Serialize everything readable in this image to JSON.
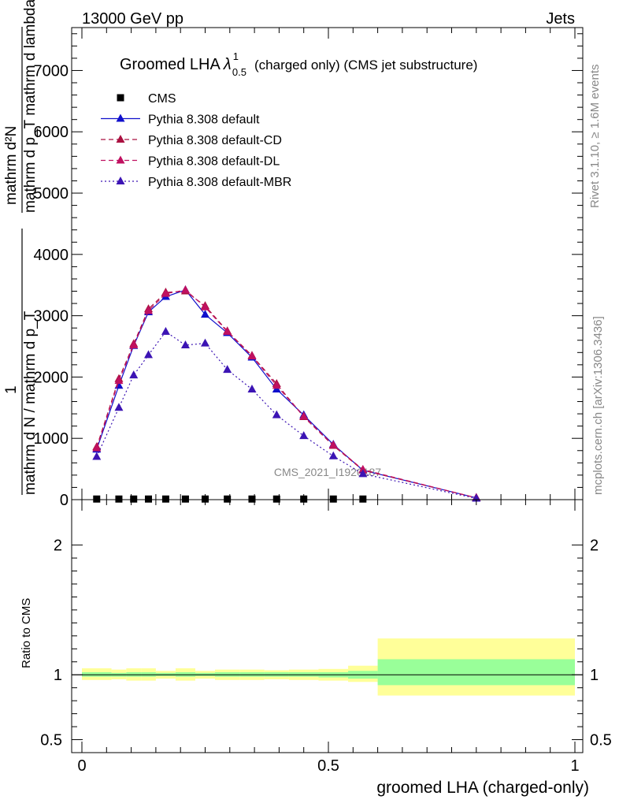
{
  "header": {
    "left": "13000 GeV pp",
    "right": "Jets"
  },
  "side_text": {
    "rivet": "Rivet 3.1.10, ≥ 1.6M events",
    "mcplots": "mcplots.cern.ch [arXiv:1306.3436]"
  },
  "watermark": "CMS_2021_I1920187",
  "chart_data": [
    {
      "type": "line",
      "title_main": "Groomed LHA",
      "title_symbol": "λ",
      "title_sup": "1",
      "title_sub": "0.5",
      "title_rest": "(charged only) (CMS jet substructure)",
      "ylabel_top": "mathrm d²N",
      "ylabel_bottom": "mathrm d p_T mathrm d lambda",
      "ylabel_small_top": "1",
      "ylabel_small_bottom": "mathrm d N / mathrm d p_T",
      "xlim": [
        0,
        1
      ],
      "ylim": [
        0,
        7700
      ],
      "y_tick_values": [
        0,
        1000,
        2000,
        3000,
        4000,
        5000,
        6000,
        7000
      ],
      "y_tick_labels": [
        "0",
        "1000",
        "2000",
        "3000",
        "4000",
        "5000",
        "6000",
        "7000"
      ],
      "legend_position": "top-left",
      "series": [
        {
          "name": "CMS",
          "marker": "square",
          "color": "#000000",
          "x": [
            0.03,
            0.075,
            0.105,
            0.135,
            0.17,
            0.21,
            0.25,
            0.295,
            0.345,
            0.395,
            0.45,
            0.51,
            0.57
          ],
          "y": [
            10,
            10,
            10,
            10,
            10,
            10,
            10,
            10,
            10,
            10,
            10,
            10,
            10
          ]
        },
        {
          "name": "Pythia 8.308 default",
          "marker": "triangle",
          "dash": "solid",
          "color": "#1010cc",
          "x": [
            0.03,
            0.075,
            0.105,
            0.135,
            0.17,
            0.21,
            0.25,
            0.295,
            0.345,
            0.395,
            0.45,
            0.51,
            0.57,
            0.8
          ],
          "y": [
            820,
            1860,
            2510,
            3060,
            3310,
            3420,
            3020,
            2720,
            2320,
            1800,
            1380,
            900,
            480,
            30
          ]
        },
        {
          "name": "Pythia 8.308 default-CD",
          "marker": "triangle",
          "dash": "dashed",
          "color": "#aa1040",
          "x": [
            0.03,
            0.075,
            0.105,
            0.135,
            0.17,
            0.21,
            0.25,
            0.295,
            0.345,
            0.395,
            0.45,
            0.51,
            0.57,
            0.8
          ],
          "y": [
            860,
            1970,
            2540,
            3110,
            3380,
            3400,
            3160,
            2750,
            2350,
            1890,
            1350,
            880,
            480,
            30
          ]
        },
        {
          "name": "Pythia 8.308 default-DL",
          "marker": "triangle",
          "dash": "dashed",
          "color": "#c01060",
          "x": [
            0.03,
            0.075,
            0.105,
            0.135,
            0.17,
            0.21,
            0.25,
            0.295,
            0.345,
            0.395,
            0.45,
            0.51,
            0.57,
            0.8
          ],
          "y": [
            840,
            1940,
            2520,
            3080,
            3360,
            3420,
            3140,
            2740,
            2340,
            1860,
            1360,
            890,
            490,
            30
          ]
        },
        {
          "name": "Pythia 8.308 default-MBR",
          "marker": "triangle",
          "dash": "dotted",
          "color": "#3c14b4",
          "x": [
            0.03,
            0.075,
            0.105,
            0.135,
            0.17,
            0.21,
            0.25,
            0.295,
            0.345,
            0.395,
            0.45,
            0.51,
            0.57,
            0.8
          ],
          "y": [
            700,
            1500,
            2030,
            2360,
            2740,
            2520,
            2550,
            2120,
            1800,
            1380,
            1040,
            710,
            420,
            20
          ]
        }
      ]
    },
    {
      "type": "area",
      "ylabel": "Ratio to CMS",
      "xlabel": "groomed LHA (charged-only)",
      "xlim": [
        0,
        1
      ],
      "ylim": [
        0.4,
        2.35
      ],
      "y_tick_values": [
        0.5,
        1,
        2
      ],
      "y_tick_labels": [
        "0.5",
        "1",
        "2"
      ],
      "x_tick_values": [
        0,
        0.5,
        1
      ],
      "x_tick_labels": [
        "0",
        "0.5",
        "1"
      ],
      "uncertainty_bins": [
        {
          "x0": 0.0,
          "x1": 0.06,
          "stat_lo": 0.985,
          "stat_hi": 1.02,
          "tot_lo": 0.96,
          "tot_hi": 1.05
        },
        {
          "x0": 0.06,
          "x1": 0.09,
          "stat_lo": 0.985,
          "stat_hi": 1.015,
          "tot_lo": 0.965,
          "tot_hi": 1.04
        },
        {
          "x0": 0.09,
          "x1": 0.12,
          "stat_lo": 0.985,
          "stat_hi": 1.02,
          "tot_lo": 0.955,
          "tot_hi": 1.05
        },
        {
          "x0": 0.12,
          "x1": 0.15,
          "stat_lo": 0.985,
          "stat_hi": 1.02,
          "tot_lo": 0.955,
          "tot_hi": 1.05
        },
        {
          "x0": 0.15,
          "x1": 0.19,
          "stat_lo": 0.99,
          "stat_hi": 1.015,
          "tot_lo": 0.97,
          "tot_hi": 1.03
        },
        {
          "x0": 0.19,
          "x1": 0.23,
          "stat_lo": 0.985,
          "stat_hi": 1.02,
          "tot_lo": 0.955,
          "tot_hi": 1.05
        },
        {
          "x0": 0.23,
          "x1": 0.27,
          "stat_lo": 0.99,
          "stat_hi": 1.015,
          "tot_lo": 0.97,
          "tot_hi": 1.03
        },
        {
          "x0": 0.27,
          "x1": 0.32,
          "stat_lo": 0.985,
          "stat_hi": 1.02,
          "tot_lo": 0.96,
          "tot_hi": 1.04
        },
        {
          "x0": 0.32,
          "x1": 0.37,
          "stat_lo": 0.985,
          "stat_hi": 1.02,
          "tot_lo": 0.96,
          "tot_hi": 1.04
        },
        {
          "x0": 0.37,
          "x1": 0.42,
          "stat_lo": 0.985,
          "stat_hi": 1.02,
          "tot_lo": 0.965,
          "tot_hi": 1.035
        },
        {
          "x0": 0.42,
          "x1": 0.48,
          "stat_lo": 0.985,
          "stat_hi": 1.02,
          "tot_lo": 0.96,
          "tot_hi": 1.04
        },
        {
          "x0": 0.48,
          "x1": 0.54,
          "stat_lo": 0.98,
          "stat_hi": 1.02,
          "tot_lo": 0.955,
          "tot_hi": 1.045
        },
        {
          "x0": 0.54,
          "x1": 0.6,
          "stat_lo": 0.97,
          "stat_hi": 1.03,
          "tot_lo": 0.945,
          "tot_hi": 1.07
        },
        {
          "x0": 0.6,
          "x1": 1.0,
          "stat_lo": 0.92,
          "stat_hi": 1.12,
          "tot_lo": 0.84,
          "tot_hi": 1.28
        }
      ],
      "stat_color": "#99ff99",
      "total_color": "#ffff99"
    }
  ]
}
